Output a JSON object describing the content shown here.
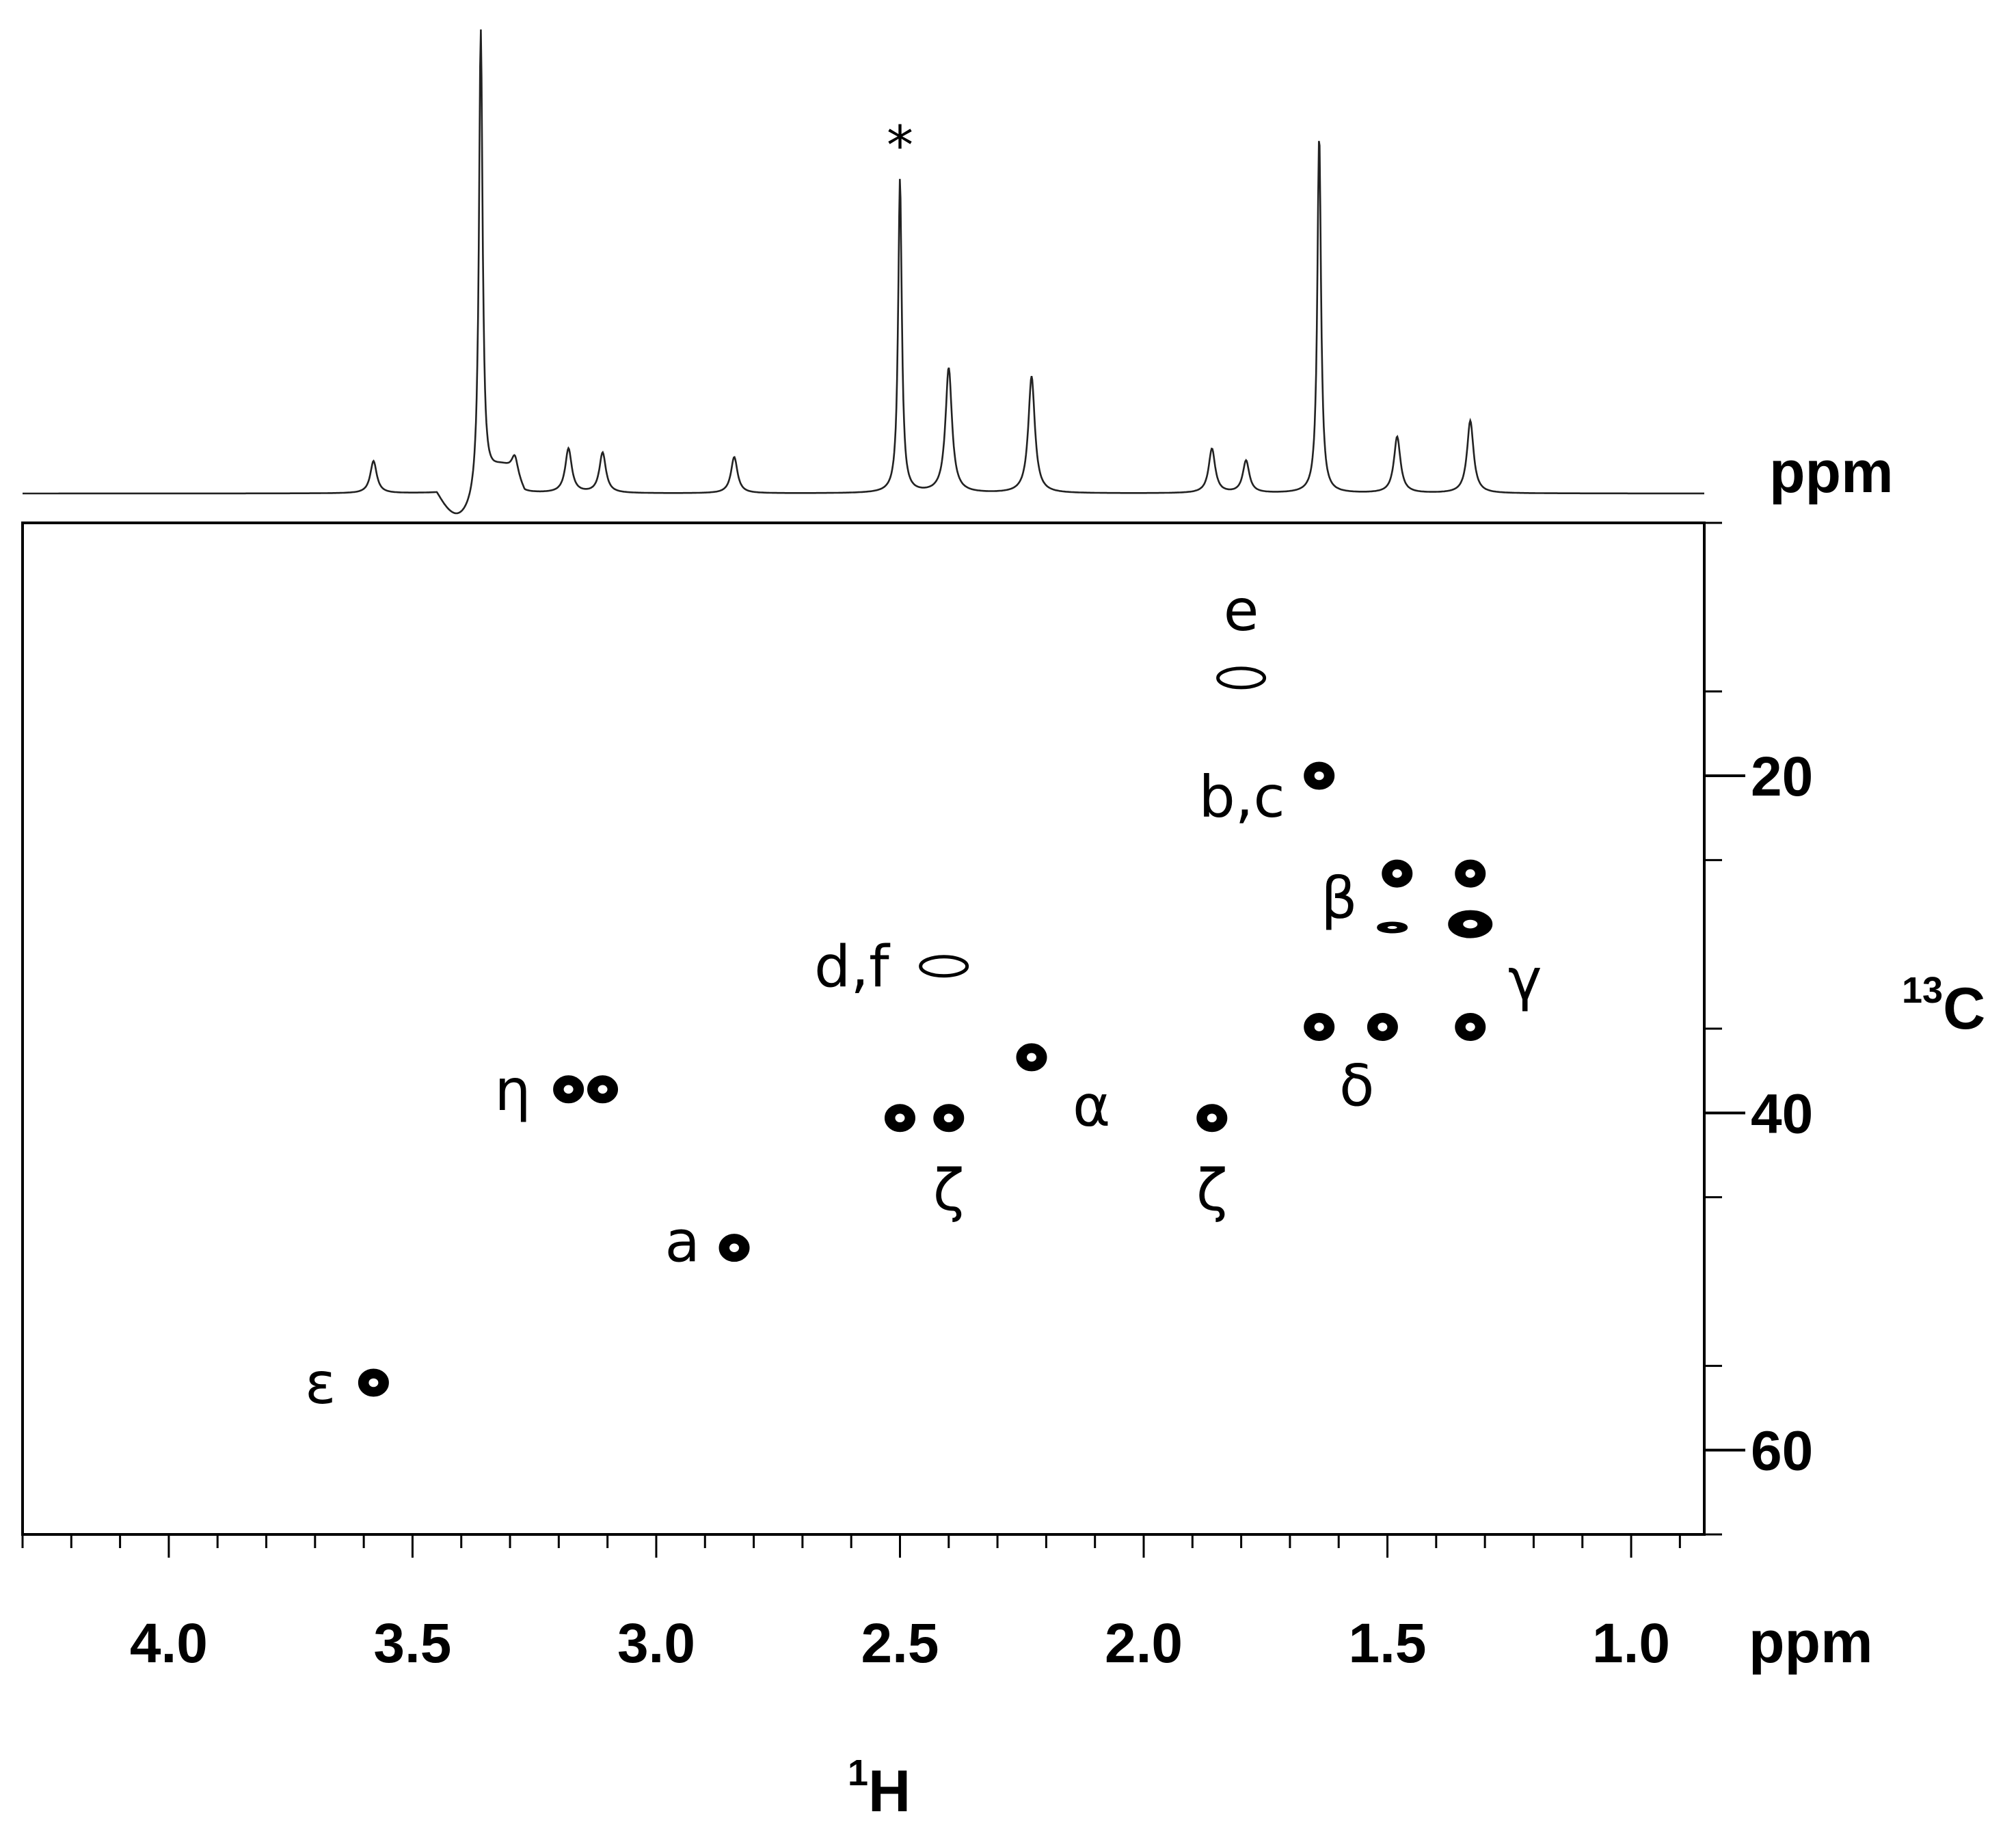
{
  "chart_data": {
    "type": "scatter",
    "title": "",
    "x_axis": {
      "label": "H",
      "label_superscript": "1",
      "unit": "ppm",
      "range": [
        4.3,
        0.85
      ],
      "reversed": true,
      "ticks": [
        "4.0",
        "3.5",
        "3.0",
        "2.5",
        "2.0",
        "1.5",
        "1.0"
      ],
      "tick_values": [
        4.0,
        3.5,
        3.0,
        2.5,
        2.0,
        1.5,
        1.0
      ]
    },
    "y_axis": {
      "label": "C",
      "label_superscript": "13",
      "range": [
        5,
        65
      ],
      "reversed": true,
      "ticks": [
        "20",
        "40",
        "60"
      ],
      "tick_values": [
        20,
        40,
        60
      ]
    },
    "projection": {
      "unit": "ppm",
      "star_label": "*",
      "peaks": [
        {
          "h": 3.58,
          "height": 0.08
        },
        {
          "h": 3.36,
          "height": 1.15
        },
        {
          "h": 3.29,
          "height": 0.05
        },
        {
          "h": 3.18,
          "height": 0.11
        },
        {
          "h": 3.11,
          "height": 0.1
        },
        {
          "h": 2.84,
          "height": 0.09
        },
        {
          "h": 2.5,
          "height": 0.78
        },
        {
          "h": 2.4,
          "height": 0.31
        },
        {
          "h": 2.23,
          "height": 0.29
        },
        {
          "h": 1.86,
          "height": 0.11
        },
        {
          "h": 1.79,
          "height": 0.08
        },
        {
          "h": 1.64,
          "height": 0.89
        },
        {
          "h": 1.48,
          "height": 0.14
        },
        {
          "h": 1.33,
          "height": 0.18
        }
      ]
    },
    "cross_peaks": [
      {
        "label": "e",
        "h": 1.8,
        "c": 14.2
      },
      {
        "label": "b,c",
        "h": 1.64,
        "c": 20.0
      },
      {
        "label": "β",
        "h": 1.48,
        "c": 25.8
      },
      {
        "label": "",
        "h": 1.33,
        "c": 25.8
      },
      {
        "label": "",
        "h": 1.49,
        "c": 29.0
      },
      {
        "label": "γ",
        "h": 1.33,
        "c": 28.8
      },
      {
        "label": "d,f",
        "h": 2.41,
        "c": 31.3
      },
      {
        "label": "δ",
        "h": 1.64,
        "c": 34.9
      },
      {
        "label": "",
        "h": 1.51,
        "c": 34.9
      },
      {
        "label": "",
        "h": 1.33,
        "c": 34.9
      },
      {
        "label": "α",
        "h": 2.23,
        "c": 36.7
      },
      {
        "label": "η",
        "h": 3.18,
        "c": 38.6
      },
      {
        "label": "",
        "h": 3.11,
        "c": 38.6
      },
      {
        "label": "",
        "h": 2.5,
        "c": 40.3
      },
      {
        "label": "ζ",
        "h": 2.4,
        "c": 40.3
      },
      {
        "label": "ζ",
        "h": 1.86,
        "c": 40.3
      },
      {
        "label": "a",
        "h": 2.84,
        "c": 48.0
      },
      {
        "label": "ε",
        "h": 3.58,
        "c": 56.0
      }
    ]
  }
}
